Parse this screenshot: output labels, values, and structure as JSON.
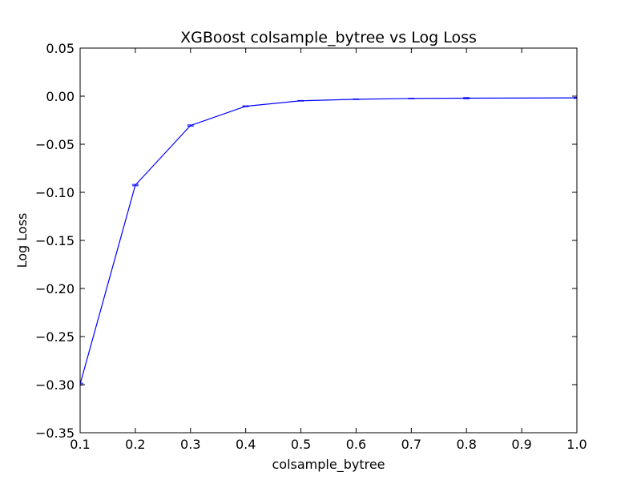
{
  "chart_data": {
    "type": "line",
    "title": "XGBoost colsample_bytree vs Log Loss",
    "xlabel": "colsample_bytree",
    "ylabel": "Log Loss",
    "xlim": [
      0.1,
      1.0
    ],
    "ylim": [
      -0.35,
      0.05
    ],
    "x_ticks": [
      0.1,
      0.2,
      0.3,
      0.4,
      0.5,
      0.6,
      0.7,
      0.8,
      0.9,
      1.0
    ],
    "x_tick_labels": [
      "0.1",
      "0.2",
      "0.3",
      "0.4",
      "0.5",
      "0.6",
      "0.7",
      "0.8",
      "0.9",
      "1.0"
    ],
    "y_ticks": [
      0.05,
      0.0,
      -0.05,
      -0.1,
      -0.15,
      -0.2,
      -0.25,
      -0.3,
      -0.35
    ],
    "y_tick_labels": [
      "0.05",
      "0.00",
      "−0.05",
      "−0.10",
      "−0.15",
      "−0.20",
      "−0.25",
      "−0.30",
      "−0.35"
    ],
    "grid": false,
    "legend": "none",
    "series": [
      {
        "color": "#0000ff",
        "x": [
          0.1,
          0.2,
          0.3,
          0.4,
          0.5,
          0.6,
          0.7,
          0.8,
          1.0
        ],
        "y": [
          -0.2995,
          -0.0925,
          -0.0305,
          -0.0105,
          -0.0048,
          -0.0032,
          -0.0024,
          -0.0021,
          -0.0018
        ],
        "yerr": [
          0.001,
          0.0007,
          0.0006,
          0.0004,
          0.0003,
          0.0003,
          0.0003,
          0.0006,
          0.0005
        ]
      }
    ]
  }
}
